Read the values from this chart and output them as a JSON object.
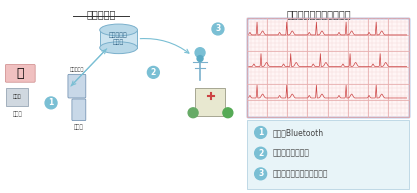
{
  "title_left": "イメージ図",
  "title_right": "（１２誘導心電図の例）",
  "legend_items": [
    {
      "num": "1",
      "text": "・・・Bluetooth"
    },
    {
      "num": "2",
      "text": "・・・携帯電話網"
    },
    {
      "num": "3",
      "text": "・・・インターネット回線"
    }
  ],
  "bg_color": "#ffffff",
  "legend_bg": "#e8f4f8",
  "ecg_border": "#4472c4",
  "ecg_bg": "#fff5f5",
  "ecg_grid_major": "#e8b0b0",
  "ecg_grid_minor": "#f5d8d8",
  "circle_color": "#7abfd4",
  "arrow_color": "#7abfd4",
  "font_size_title": 7,
  "font_size_legend": 6,
  "font_size_label": 5
}
